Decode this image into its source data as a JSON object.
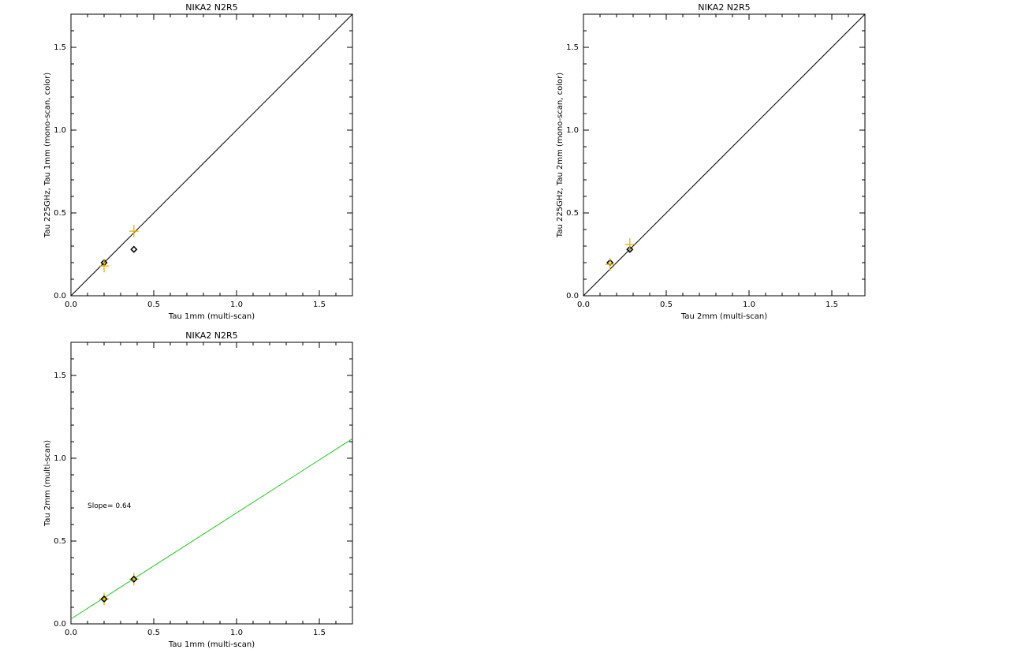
{
  "chart_data": [
    {
      "type": "scatter",
      "title": "NIKA2 N2R5",
      "xlabel": "Tau 1mm (multi-scan)",
      "ylabel": "Tau 225GHz, Tau 1mm (mono-scan, color)",
      "xlim": [
        0.0,
        1.7
      ],
      "ylim": [
        0.0,
        1.7
      ],
      "xticks": [
        "0.0",
        "0.5",
        "1.0",
        "1.5"
      ],
      "yticks": [
        "0.0",
        "0.5",
        "1.0",
        "1.5"
      ],
      "grid": false,
      "series": [
        {
          "marker": "diamond",
          "color": "#000000",
          "points": [
            [
              0.2,
              0.2
            ],
            [
              0.38,
              0.28
            ]
          ]
        },
        {
          "marker": "plus",
          "color": "#e8b400",
          "points": [
            [
              0.2,
              0.18
            ],
            [
              0.38,
              0.39
            ]
          ]
        }
      ],
      "reference_line": {
        "type": "identity",
        "color": "#000000"
      }
    },
    {
      "type": "scatter",
      "title": "NIKA2 N2R5",
      "xlabel": "Tau 2mm (multi-scan)",
      "ylabel": "Tau 225GHz, Tau 2mm (mono-scan, color)",
      "xlim": [
        0.0,
        1.7
      ],
      "ylim": [
        0.0,
        1.7
      ],
      "xticks": [
        "0.0",
        "0.5",
        "1.0",
        "1.5"
      ],
      "yticks": [
        "0.0",
        "0.5",
        "1.0",
        "1.5"
      ],
      "grid": false,
      "series": [
        {
          "marker": "diamond",
          "color": "#000000",
          "points": [
            [
              0.16,
              0.2
            ],
            [
              0.28,
              0.28
            ]
          ]
        },
        {
          "marker": "plus",
          "color": "#e8b400",
          "points": [
            [
              0.16,
              0.19
            ],
            [
              0.28,
              0.31
            ]
          ]
        }
      ],
      "reference_line": {
        "type": "identity",
        "color": "#000000"
      }
    },
    {
      "type": "scatter",
      "title": "NIKA2 N2R5",
      "xlabel": "Tau 1mm (multi-scan)",
      "ylabel": "Tau 2mm (multi-scan)",
      "xlim": [
        0.0,
        1.7
      ],
      "ylim": [
        0.0,
        1.7
      ],
      "xticks": [
        "0.0",
        "0.5",
        "1.0",
        "1.5"
      ],
      "yticks": [
        "0.0",
        "0.5",
        "1.0",
        "1.5"
      ],
      "grid": false,
      "series": [
        {
          "marker": "plus",
          "color": "#e8b400",
          "points": [
            [
              0.2,
              0.15
            ],
            [
              0.38,
              0.27
            ]
          ]
        },
        {
          "marker": "diamond",
          "color": "#000000",
          "points": [
            [
              0.2,
              0.15
            ],
            [
              0.38,
              0.27
            ]
          ]
        }
      ],
      "fit_line": {
        "slope": 0.64,
        "intercept": 0.03,
        "color": "#22cc22"
      },
      "annotation": {
        "text": "Slope=   0.64",
        "x": 0.1,
        "y": 0.7
      }
    }
  ]
}
